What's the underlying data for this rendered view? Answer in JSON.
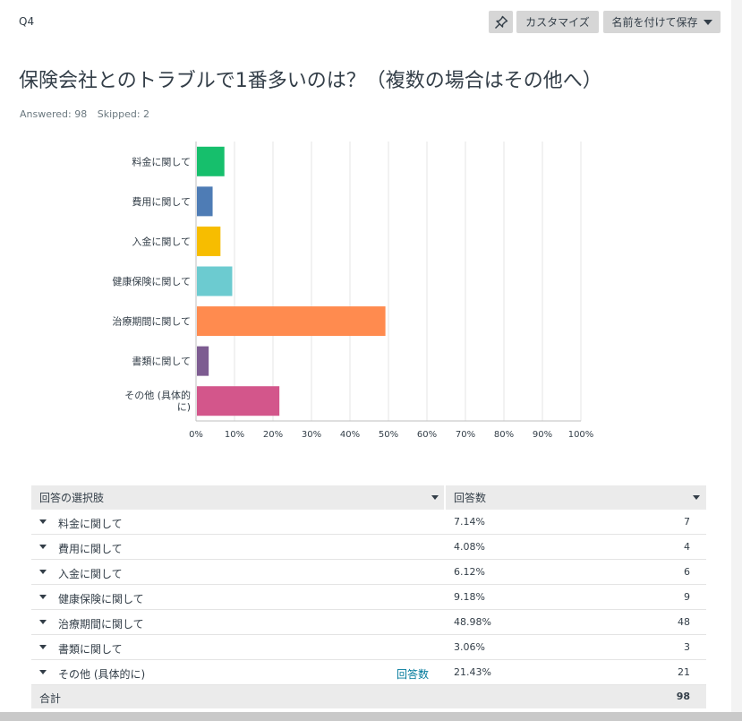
{
  "header": {
    "question_number": "Q4",
    "pin_icon": "pin-icon",
    "customize_label": "カスタマイズ",
    "save_label": "名前を付けて保存"
  },
  "question": {
    "title": "保険会社とのトラブルで1番多いのは？（複数の場合はその他へ）",
    "answered": "Answered: 98",
    "skipped": "Skipped: 2"
  },
  "chart_data": {
    "type": "bar",
    "orientation": "horizontal",
    "categories": [
      "料金に関して",
      "費用に関して",
      "入金に関して",
      "健康保険に関して",
      "治療期間に関して",
      "書類に関して",
      "その他 (具体的に)"
    ],
    "category_lines": [
      [
        "料金に関して"
      ],
      [
        "費用に関して"
      ],
      [
        "入金に関して"
      ],
      [
        "健康保険に関して"
      ],
      [
        "治療期間に関して"
      ],
      [
        "書類に関して"
      ],
      [
        "その他 (具体的",
        "に)"
      ]
    ],
    "values": [
      7.14,
      4.08,
      6.12,
      9.18,
      48.98,
      3.06,
      21.43
    ],
    "colors": [
      "#16bf6c",
      "#4e7cb5",
      "#f7bd00",
      "#6ccbd0",
      "#ff8b4f",
      "#7d5c91",
      "#d3568b"
    ],
    "xlim": [
      0,
      100
    ],
    "xticks": [
      "0%",
      "10%",
      "20%",
      "30%",
      "40%",
      "50%",
      "60%",
      "70%",
      "80%",
      "90%",
      "100%"
    ],
    "grid": true
  },
  "table": {
    "col1_header": "回答の選択肢",
    "col2_header": "回答数",
    "rows": [
      {
        "label": "料金に関して",
        "percent": "7.14%",
        "count": "7"
      },
      {
        "label": "費用に関して",
        "percent": "4.08%",
        "count": "4"
      },
      {
        "label": "入金に関して",
        "percent": "6.12%",
        "count": "6"
      },
      {
        "label": "健康保険に関して",
        "percent": "9.18%",
        "count": "9"
      },
      {
        "label": "治療期間に関して",
        "percent": "48.98%",
        "count": "48"
      },
      {
        "label": "書類に関して",
        "percent": "3.06%",
        "count": "3"
      },
      {
        "label": "その他 (具体的に)",
        "percent": "21.43%",
        "count": "21",
        "link": "回答数"
      }
    ],
    "total_label": "合計",
    "total_count": "98"
  }
}
